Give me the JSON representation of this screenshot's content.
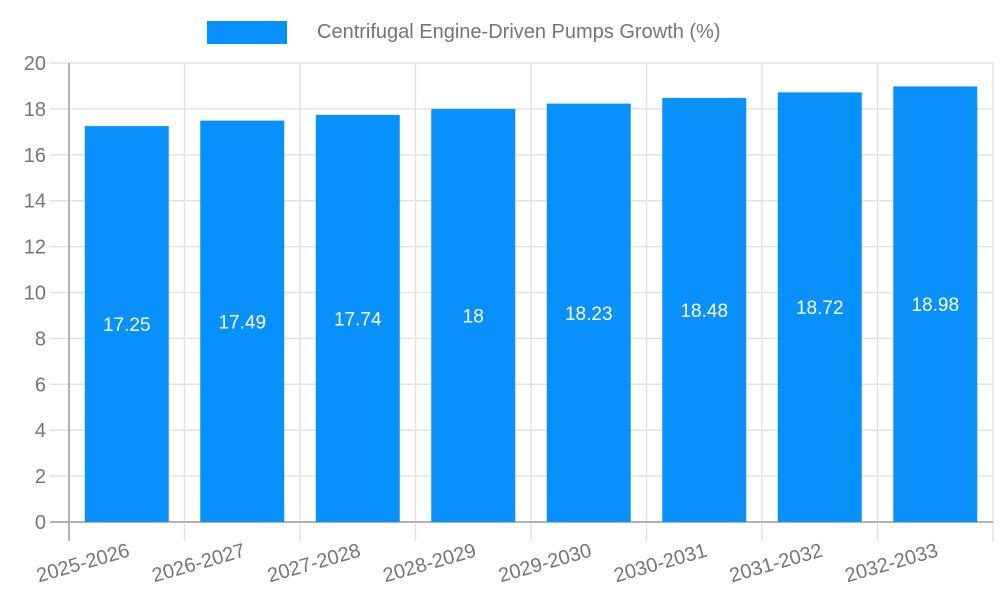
{
  "legend": {
    "label": "Centrifugal Engine-Driven Pumps Growth (%)"
  },
  "chart_data": {
    "type": "bar",
    "title": "Centrifugal Engine-Driven Pumps Growth (%)",
    "categories": [
      "2025-2026",
      "2026-2027",
      "2027-2028",
      "2028-2029",
      "2029-2030",
      "2030-2031",
      "2031-2032",
      "2032-2033"
    ],
    "values": [
      17.25,
      17.49,
      17.74,
      18,
      18.23,
      18.48,
      18.72,
      18.98
    ],
    "value_labels": [
      "17.25",
      "17.49",
      "17.74",
      "18",
      "18.23",
      "18.48",
      "18.72",
      "18.98"
    ],
    "xlabel": "",
    "ylabel": "",
    "ylim": [
      0,
      20
    ],
    "ytick_step": 2,
    "yticks": [
      "0",
      "2",
      "4",
      "6",
      "8",
      "10",
      "12",
      "14",
      "16",
      "18",
      "20"
    ],
    "grid": true,
    "legend_position": "top",
    "colors": {
      "bar": "#0991fb",
      "grid": "#e2e2e2",
      "axis": "#b3b3b3",
      "tick_text": "#757575",
      "value_text": "#ffffff"
    }
  }
}
